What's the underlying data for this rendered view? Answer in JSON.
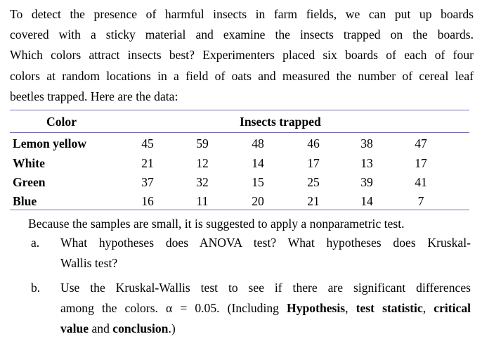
{
  "intro_lines": [
    "To detect the presence of harmful insects in farm fields, we can put up boards",
    "covered with a sticky material and examine the insects trapped on the boards.",
    "Which colors attract insects best? Experimenters placed six boards of each of four",
    "colors at random locations in a field of oats and measured the number of cereal leaf",
    "beetles trapped. Here are the data:"
  ],
  "table": {
    "header_color": "Color",
    "header_insects": "Insects trapped",
    "rows": [
      {
        "label": "Lemon yellow",
        "values": [
          "45",
          "59",
          "48",
          "46",
          "38",
          "47"
        ]
      },
      {
        "label": "White",
        "values": [
          "21",
          "12",
          "14",
          "17",
          "13",
          "17"
        ]
      },
      {
        "label": "Green",
        "values": [
          "37",
          "32",
          "15",
          "25",
          "39",
          "41"
        ]
      },
      {
        "label": "Blue",
        "values": [
          "16",
          "11",
          "20",
          "21",
          "14",
          "7"
        ]
      }
    ],
    "rule_color": "#7a6aa8"
  },
  "after_table": "Because the samples are small, it is suggested to apply a nonparametric test.",
  "questions": {
    "a": {
      "label": "a.",
      "line1": "What hypotheses does ANOVA test? What hypotheses does Kruskal-",
      "line2": "Wallis test?"
    },
    "b": {
      "label": "b.",
      "line1": "Use the Kruskal-Wallis test to see if there are significant differences",
      "line2_pre": "among the colors. α = 0.05. (Including ",
      "line2_b1": "Hypothesis",
      "line2_sep1": ", ",
      "line2_b2": "test statistic",
      "line2_sep2": ", ",
      "line2_b3": "critical",
      "line3_b1": "value",
      "line3_mid": " and ",
      "line3_b2": "conclusion",
      "line3_end": ".)"
    }
  }
}
